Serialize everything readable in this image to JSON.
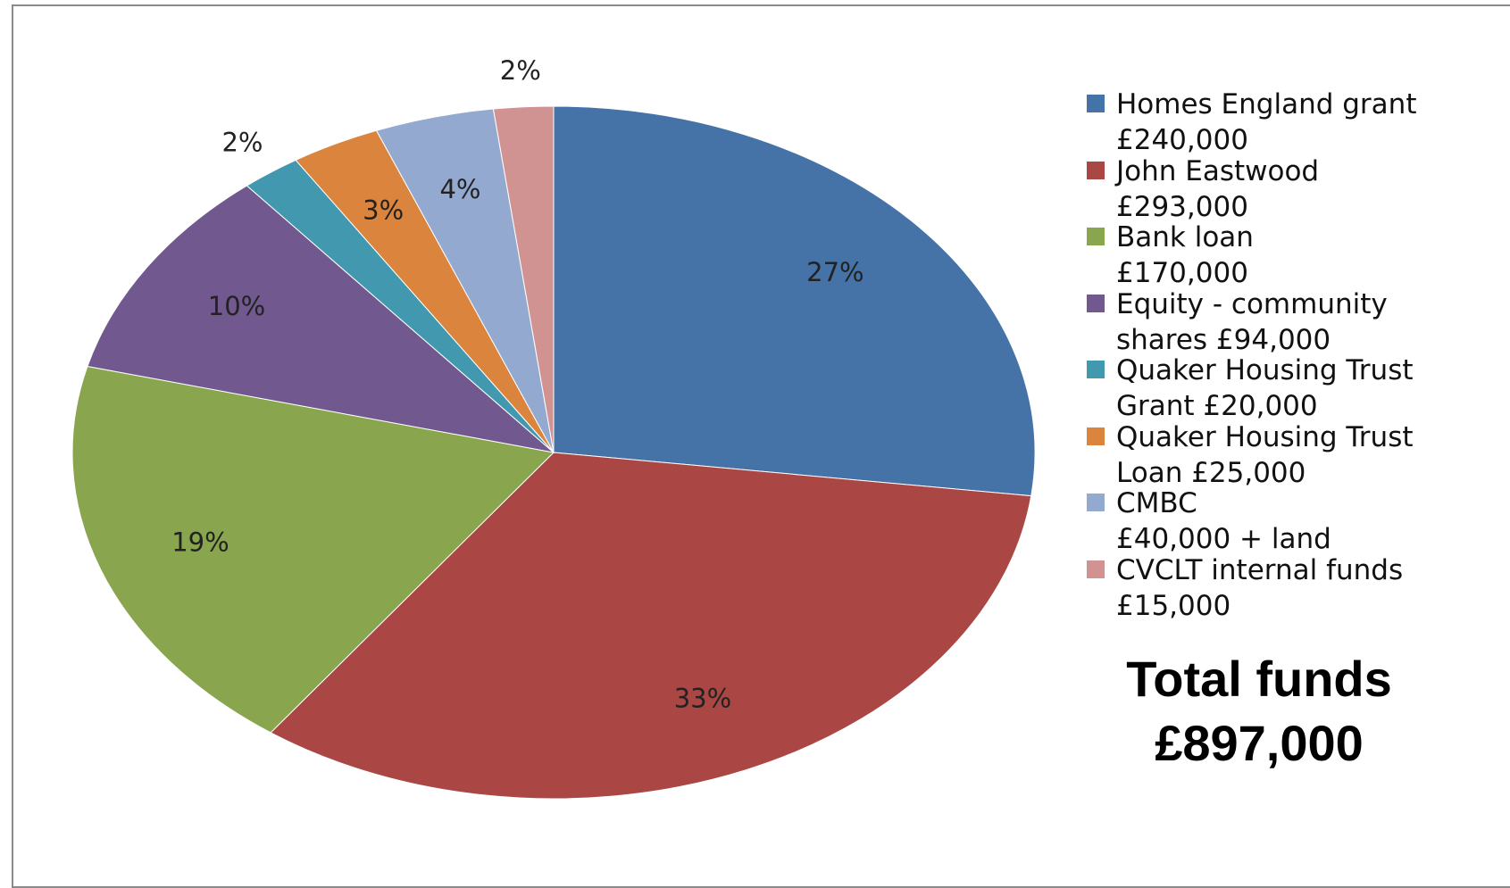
{
  "chart_data": {
    "type": "pie",
    "categories": [
      "Homes England grant\n£240,000",
      "John Eastwood\n£293,000",
      "Bank loan\n£170,000",
      "Equity - community\nshares £94,000",
      "Quaker Housing Trust\nGrant £20,000",
      "Quaker Housing Trust\nLoan £25,000",
      "CMBC\n£40,000 + land",
      "CVCLT internal funds\n£15,000"
    ],
    "values": [
      27,
      33,
      19,
      10,
      2,
      3,
      4,
      2
    ],
    "value_labels": [
      "27%",
      "33%",
      "19%",
      "10%",
      "2%",
      "3%",
      "4%",
      "2%"
    ],
    "colors": [
      "#4572a7",
      "#aa4643",
      "#89a54e",
      "#71588f",
      "#4198af",
      "#db843d",
      "#93a9cf",
      "#d19392"
    ],
    "legend": "right",
    "annotation": "Total funds\n£897,000"
  }
}
